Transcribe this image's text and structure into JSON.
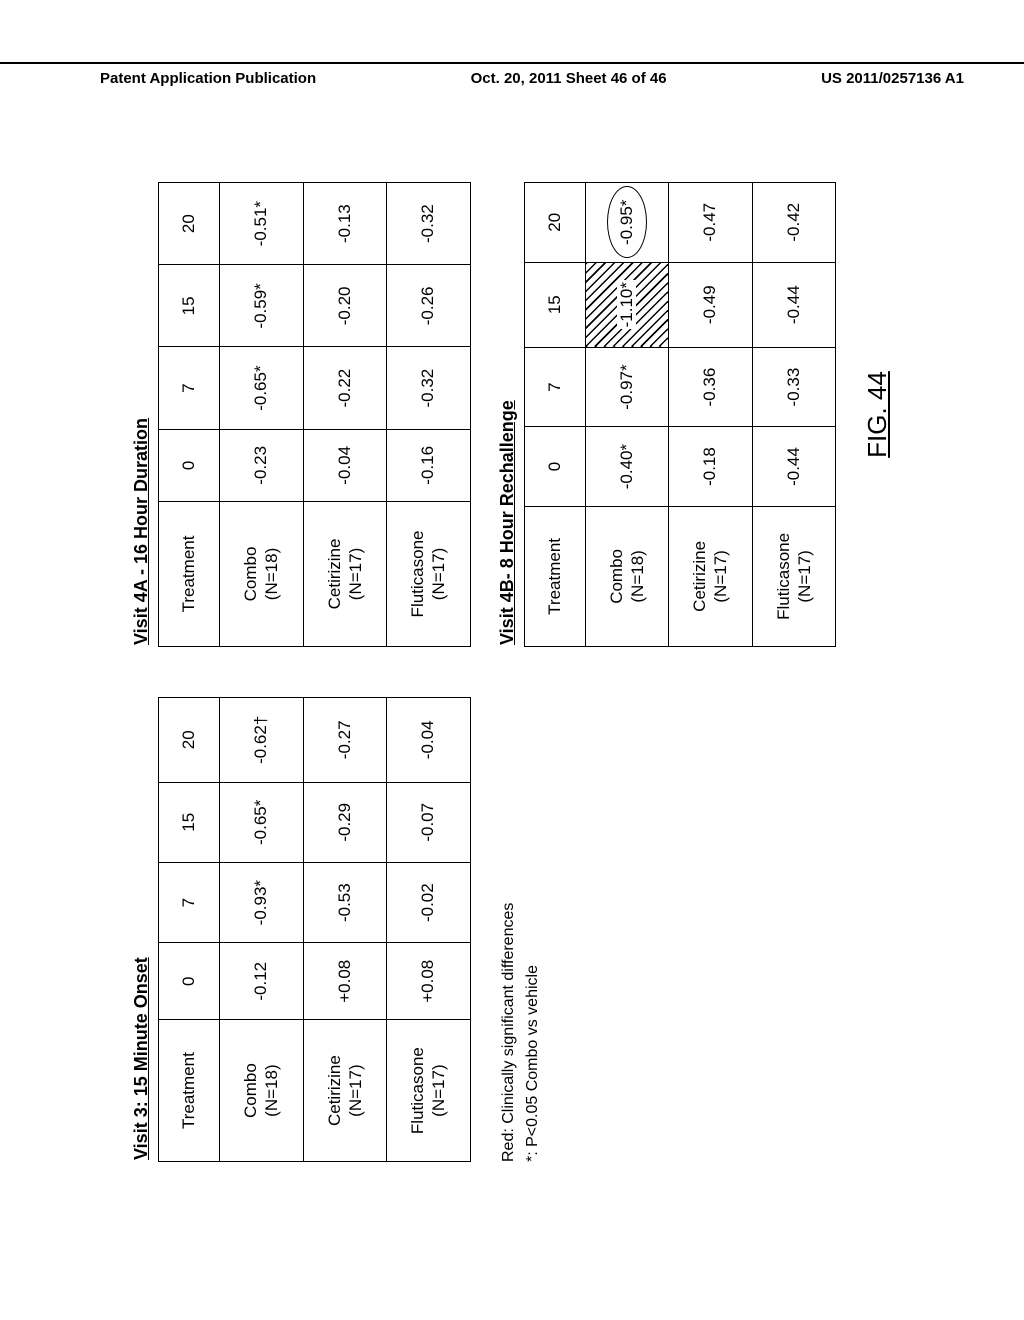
{
  "header": {
    "left": "Patent Application Publication",
    "center": "Oct. 20, 2011  Sheet 46 of 46",
    "right": "US 2011/0257136 A1"
  },
  "tables": {
    "visit3": {
      "title": "Visit 3: 15 Minute Onset",
      "columns": [
        "Treatment",
        "0",
        "7",
        "15",
        "20"
      ],
      "rows": [
        {
          "label": "Combo\n(N=18)",
          "c0": "-0.12",
          "c7": "-0.93*",
          "c15": "-0.65*",
          "c20": "-0.62†"
        },
        {
          "label": "Cetirizine\n(N=17)",
          "c0": "+0.08",
          "c7": "-0.53",
          "c15": "-0.29",
          "c20": "-0.27"
        },
        {
          "label": "Fluticasone\n(N=17)",
          "c0": "+0.08",
          "c7": "-0.02",
          "c15": "-0.07",
          "c20": "-0.04"
        }
      ]
    },
    "visit4a": {
      "title": "Visit 4A - 16 Hour Duration",
      "columns": [
        "Treatment",
        "0",
        "7",
        "15",
        "20"
      ],
      "rows": [
        {
          "label": "Combo\n(N=18)",
          "c0": "-0.23",
          "c7": "-0.65*",
          "c15": "-0.59*",
          "c20": "-0.51*"
        },
        {
          "label": "Cetirizine\n(N=17)",
          "c0": "-0.04",
          "c7": "-0.22",
          "c15": "-0.20",
          "c20": "-0.13"
        },
        {
          "label": "Fluticasone\n(N=17)",
          "c0": "-0.16",
          "c7": "-0.32",
          "c15": "-0.26",
          "c20": "-0.32"
        }
      ]
    },
    "visit4b": {
      "title": "Visit 4B- 8 Hour Rechallenge",
      "columns": [
        "Treatment",
        "0",
        "7",
        "15",
        "20"
      ],
      "rows": [
        {
          "label": "Combo\n(N=18)",
          "c0": "-0.40*",
          "c7": "-0.97*",
          "c15": "-1.10*",
          "c20": "-0.95*",
          "hatch15": true,
          "circle20": true
        },
        {
          "label": "Cetirizine\n(N=17)",
          "c0": "-0.18",
          "c7": "-0.36",
          "c15": "-0.49",
          "c20": "-0.47"
        },
        {
          "label": "Fluticasone\n(N=17)",
          "c0": "-0.44",
          "c7": "-0.33",
          "c15": "-0.44",
          "c20": "-0.42"
        }
      ]
    }
  },
  "footnotes": {
    "line1": "Red: Clinically significant differences",
    "line2": "*: P<0.05 Combo vs vehicle"
  },
  "figure_label": "FIG. 44"
}
